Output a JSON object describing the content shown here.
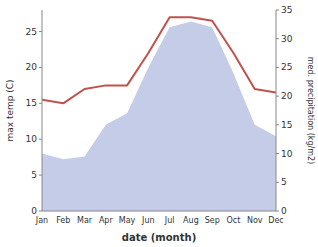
{
  "chart_data": {
    "type": "line",
    "xlabel": "date (month)",
    "ylabel": "max temp (C)",
    "y2label": "med. precipitation (kg/m2)",
    "categories": [
      "Jan",
      "Feb",
      "Mar",
      "Apr",
      "May",
      "Jun",
      "Jul",
      "Aug",
      "Sep",
      "Oct",
      "Nov",
      "Dec"
    ],
    "series": [
      {
        "type": "area",
        "axis": "y2",
        "color": "#c5cce8",
        "values": [
          10.0,
          9.0,
          9.5,
          15.0,
          17.0,
          25.0,
          32.0,
          33.0,
          32.0,
          24.0,
          15.0,
          13.0
        ]
      },
      {
        "type": "line",
        "color": "#c0514d",
        "values": [
          15.5,
          15.0,
          17.0,
          17.5,
          17.5,
          22.0,
          27.0,
          27.0,
          26.5,
          22.0,
          17.0,
          16.5
        ]
      }
    ],
    "ylim": [
      0,
      28
    ],
    "yticks": [
      0,
      5,
      10,
      15,
      20,
      25
    ],
    "y2lim": [
      0,
      35
    ],
    "y2ticks": [
      0,
      5,
      10,
      15,
      20,
      25,
      30,
      35
    ],
    "grid": false
  }
}
